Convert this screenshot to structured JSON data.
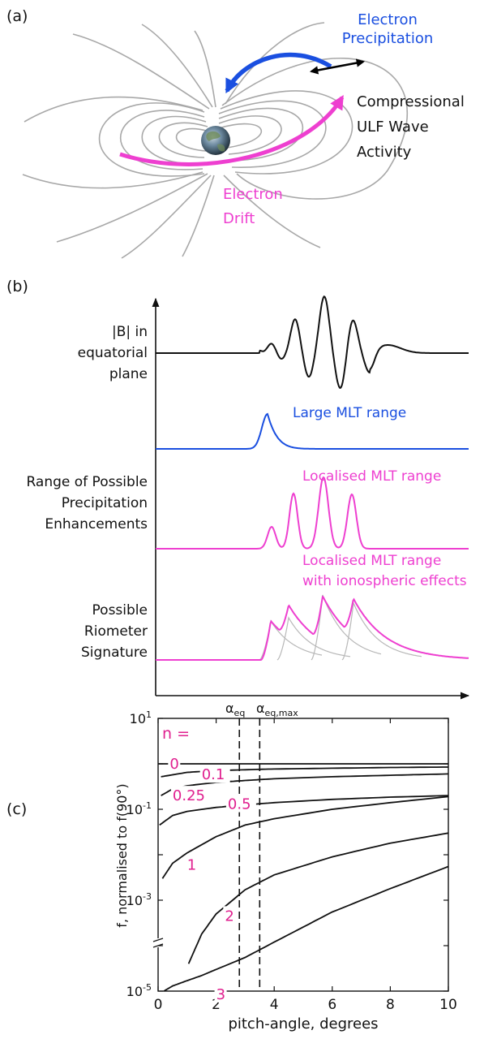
{
  "panel_a": {
    "label": "(a)",
    "precipitation_label_1": "Electron",
    "precipitation_label_2": "Precipitation",
    "ulf_label_1": "Compressional",
    "ulf_label_2": "ULF Wave",
    "ulf_label_3": "Activity",
    "drift_label_1": "Electron",
    "drift_label_2": "Drift",
    "colors": {
      "precipitation": "#1a4fe0",
      "drift": "#ee3fd0",
      "field_lines": "#a8a8a8",
      "ulf": "#000000"
    }
  },
  "panel_b": {
    "label": "(b)",
    "trace1_label_1": "|B| in",
    "trace1_label_2": "equatorial",
    "trace1_label_3": "plane",
    "trace2_label": "Large MLT range",
    "range_label_1": "Range of Possible",
    "range_label_2": "Precipitation",
    "range_label_3": "Enhancements",
    "trace3_label": "Localised MLT range",
    "trace4_label_1": "Localised MLT range",
    "trace4_label_2": "with ionospheric effects",
    "riometer_label_1": "Possible",
    "riometer_label_2": "Riometer",
    "riometer_label_3": "Signature",
    "colors": {
      "blue": "#1a4fe0",
      "magenta": "#ee3fd0",
      "black": "#111111",
      "grey": "#b8b8b8"
    }
  },
  "panel_c": {
    "label": "(c)",
    "n_label": "n =",
    "alpha_eq": "α",
    "alpha_eq_sub": "eq",
    "alpha_eqmax": "α",
    "alpha_eqmax_sub": "eq,max",
    "ylabel": "f, normalised to f(90°)",
    "xlabel": "pitch-angle, degrees",
    "curve_label_color": "#e0208f"
  },
  "chart_data": {
    "type": "line",
    "xlabel": "pitch-angle, degrees",
    "ylabel": "f, normalised to f(90°)",
    "xlim": [
      0,
      10
    ],
    "ylim": [
      1e-05,
      10
    ],
    "y_scale": "log",
    "x_ticks": [
      "0",
      "2",
      "4",
      "6",
      "8",
      "10"
    ],
    "y_ticks": [
      {
        "base": "10",
        "exp": "1"
      },
      {
        "base": "10",
        "exp": "-1"
      },
      {
        "base": "10",
        "exp": "-3"
      },
      {
        "base": "10",
        "exp": "-5"
      }
    ],
    "vertical_lines": [
      {
        "x": 2.8,
        "label": "α eq"
      },
      {
        "x": 3.5,
        "label": "α eq,max"
      }
    ],
    "series": [
      {
        "name": "0",
        "x": [
          0,
          2,
          4,
          6,
          8,
          10
        ],
        "y": [
          1,
          1,
          1,
          1,
          1,
          1
        ]
      },
      {
        "name": "0.1",
        "x": [
          0.1,
          1,
          2,
          3,
          4,
          6,
          8,
          10
        ],
        "y": [
          0.52,
          0.65,
          0.71,
          0.74,
          0.77,
          0.8,
          0.83,
          0.85
        ]
      },
      {
        "name": "0.25",
        "x": [
          0.1,
          0.5,
          1,
          2,
          3,
          4,
          6,
          8,
          10
        ],
        "y": [
          0.2,
          0.28,
          0.33,
          0.39,
          0.43,
          0.47,
          0.52,
          0.56,
          0.6
        ]
      },
      {
        "name": "0.5",
        "x": [
          0.05,
          0.5,
          1,
          2,
          3,
          4,
          6,
          8,
          10
        ],
        "y": [
          0.045,
          0.073,
          0.09,
          0.11,
          0.125,
          0.14,
          0.165,
          0.185,
          0.2
        ]
      },
      {
        "name": "1",
        "x": [
          0.15,
          0.5,
          1,
          2,
          3,
          4,
          6,
          8,
          10
        ],
        "y": [
          0.003,
          0.0065,
          0.011,
          0.025,
          0.045,
          0.062,
          0.1,
          0.14,
          0.19
        ]
      },
      {
        "name": "2",
        "x": [
          1.05,
          1.5,
          2,
          3,
          4,
          6,
          8,
          10
        ],
        "y": [
          4e-05,
          0.00018,
          0.0005,
          0.0017,
          0.0036,
          0.009,
          0.018,
          0.03
        ]
      },
      {
        "name": "3",
        "x": [
          0.2,
          0.5,
          1,
          1.5,
          2,
          3,
          4,
          6,
          8,
          10
        ],
        "y": [
          1e-05,
          1.3e-05,
          1.7e-05,
          2.2e-05,
          3e-05,
          5.5e-05,
          0.00012,
          0.00055,
          0.0018,
          0.0055
        ]
      }
    ],
    "curve_labels": [
      {
        "text": "0",
        "x": 0.4,
        "y": 1.0
      },
      {
        "text": "0.1",
        "x": 1.5,
        "y": 0.58
      },
      {
        "text": "0.25",
        "x": 0.5,
        "y": 0.2
      },
      {
        "text": "0.5",
        "x": 2.4,
        "y": 0.13
      },
      {
        "text": "1",
        "x": 1.0,
        "y": 0.006
      },
      {
        "text": "2",
        "x": 2.3,
        "y": 0.00045
      },
      {
        "text": "3",
        "x": 2.0,
        "y": 8.5e-06
      }
    ]
  }
}
